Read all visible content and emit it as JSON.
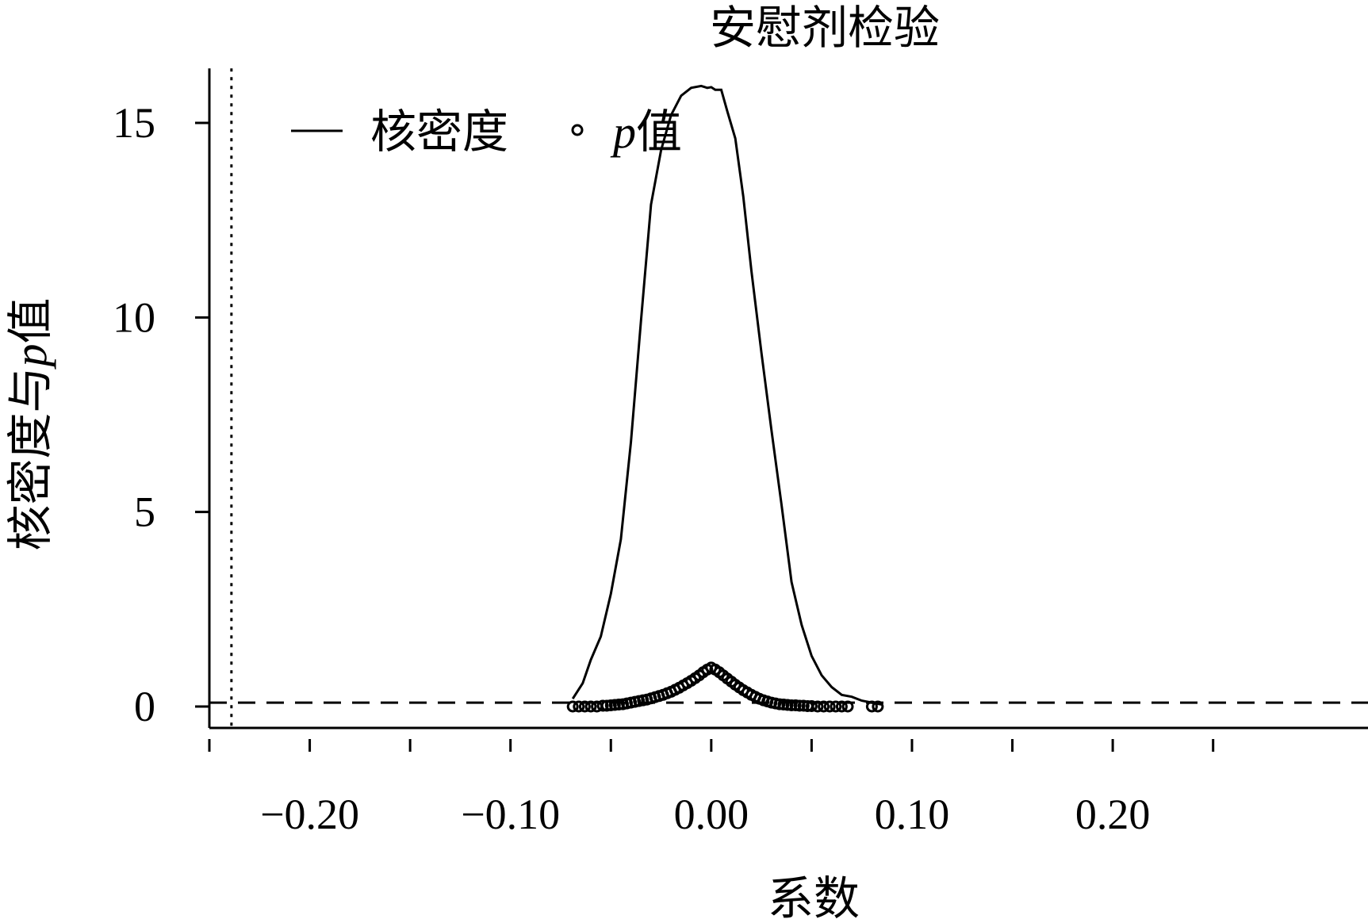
{
  "chart_data": {
    "type": "line",
    "title": "安慰剂检验",
    "xlabel": "系数",
    "ylabel_main": "核密度与",
    "ylabel_italic": "p",
    "ylabel_suffix": "值",
    "xlim": [
      -0.25,
      0.26
    ],
    "ylim": [
      -0.55,
      16.4
    ],
    "x_ticks": [
      -0.25,
      -0.2,
      -0.15,
      -0.1,
      -0.05,
      0,
      0.05,
      0.1,
      0.15,
      0.2,
      0.25
    ],
    "x_tick_labels": [
      {
        "value": -0.2,
        "label": "−0.20"
      },
      {
        "value": -0.1,
        "label": "−0.10"
      },
      {
        "value": 0,
        "label": "0.00"
      },
      {
        "value": 0.1,
        "label": "0.10"
      },
      {
        "value": 0.2,
        "label": "0.20"
      }
    ],
    "y_ticks": [
      {
        "value": 0,
        "label": "0"
      },
      {
        "value": 5,
        "label": "5"
      },
      {
        "value": 10,
        "label": "10"
      },
      {
        "value": 15,
        "label": "15"
      }
    ],
    "reference_lines": {
      "vertical_dotted_x": -0.239,
      "horizontal_dashed_y": 0.1
    },
    "legend": {
      "position": "top-left",
      "entries": [
        {
          "symbol": "line",
          "label": "核密度"
        },
        {
          "symbol": "circle",
          "label_italic": "p",
          "label": "值"
        }
      ]
    },
    "series": [
      {
        "kind": "density",
        "x": [
          -0.069,
          -0.064,
          -0.06,
          -0.055,
          -0.05,
          -0.045,
          -0.04,
          -0.035,
          -0.03,
          -0.025,
          -0.02,
          -0.015,
          -0.01,
          -0.005,
          -0.002,
          0.0,
          0.002,
          0.005,
          0.008,
          0.012,
          0.016,
          0.02,
          0.025,
          0.03,
          0.035,
          0.04,
          0.045,
          0.05,
          0.055,
          0.06,
          0.065,
          0.07,
          0.075,
          0.08,
          0.085
        ],
        "y": [
          0.2,
          0.6,
          1.2,
          1.8,
          2.9,
          4.3,
          6.8,
          9.9,
          12.9,
          14.3,
          15.2,
          15.7,
          15.9,
          15.95,
          15.9,
          15.92,
          15.85,
          15.85,
          15.3,
          14.6,
          13.1,
          11.2,
          9.1,
          7.1,
          5.2,
          3.2,
          2.1,
          1.3,
          0.8,
          0.5,
          0.3,
          0.25,
          0.15,
          0.1,
          0.05
        ]
      },
      {
        "kind": "p_value",
        "x": [
          -0.069,
          -0.066,
          -0.063,
          -0.06,
          -0.057,
          -0.054,
          -0.052,
          -0.05,
          -0.048,
          -0.046,
          -0.044,
          -0.042,
          -0.04,
          -0.038,
          -0.036,
          -0.034,
          -0.032,
          -0.03,
          -0.028,
          -0.026,
          -0.024,
          -0.022,
          -0.02,
          -0.018,
          -0.016,
          -0.014,
          -0.012,
          -0.01,
          -0.008,
          -0.006,
          -0.004,
          -0.002,
          0.0,
          0.002,
          0.004,
          0.006,
          0.008,
          0.01,
          0.012,
          0.014,
          0.016,
          0.018,
          0.02,
          0.022,
          0.024,
          0.026,
          0.028,
          0.03,
          0.032,
          0.034,
          0.036,
          0.038,
          0.04,
          0.042,
          0.044,
          0.046,
          0.048,
          0.05,
          0.053,
          0.056,
          0.059,
          0.062,
          0.065,
          0.068,
          0.08,
          0.083
        ],
        "y": [
          0.0,
          0.0,
          0.0,
          0.0,
          0.0,
          0.02,
          0.02,
          0.03,
          0.04,
          0.05,
          0.06,
          0.08,
          0.1,
          0.12,
          0.14,
          0.16,
          0.18,
          0.21,
          0.24,
          0.27,
          0.3,
          0.34,
          0.38,
          0.43,
          0.48,
          0.54,
          0.6,
          0.66,
          0.73,
          0.8,
          0.88,
          0.95,
          1.0,
          0.95,
          0.88,
          0.8,
          0.72,
          0.64,
          0.56,
          0.49,
          0.42,
          0.36,
          0.3,
          0.25,
          0.2,
          0.16,
          0.13,
          0.1,
          0.08,
          0.06,
          0.05,
          0.04,
          0.03,
          0.03,
          0.02,
          0.02,
          0.01,
          0.01,
          0.0,
          0.0,
          0.0,
          0.0,
          0.0,
          0.0,
          0.0,
          0.0
        ]
      }
    ]
  }
}
